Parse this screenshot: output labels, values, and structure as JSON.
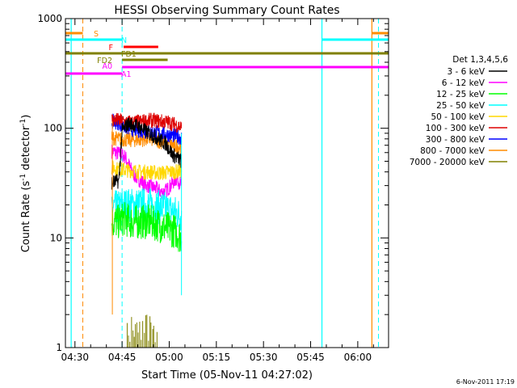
{
  "chart_data": {
    "type": "line",
    "title": "HESSI Observing Summary Count Rates",
    "xlabel": "Start Time (05-Nov-11 04:27:02)",
    "ylabel": "Count Rate (s⁻¹ detector⁻¹)",
    "ylabel_main": "Count Rate (s",
    "ylabel_sup1": "-1",
    "ylabel_mid": " detector",
    "ylabel_sup2": "-1",
    "ylabel_end": ")",
    "y_scale": "log",
    "ylim": [
      1,
      1000
    ],
    "xlim_minutes": [
      -3.03,
      99.8
    ],
    "x_ticks": [
      {
        "label": "04:30",
        "min": 0
      },
      {
        "label": "04:45",
        "min": 15
      },
      {
        "label": "05:00",
        "min": 30
      },
      {
        "label": "05:15",
        "min": 45
      },
      {
        "label": "05:30",
        "min": 60
      },
      {
        "label": "05:45",
        "min": 75
      },
      {
        "label": "06:00",
        "min": 90
      }
    ],
    "y_ticks": [
      {
        "label": "1",
        "value": 1
      },
      {
        "label": "10",
        "value": 10
      },
      {
        "label": "100",
        "value": 100
      },
      {
        "label": "1000",
        "value": 1000
      }
    ],
    "legend_title": "Det 1,3,4,5,6",
    "series": [
      {
        "name": "3 - 6 keV",
        "color": "#000000",
        "start": 11.7,
        "end": 33.9,
        "points": [
          [
            11.7,
            32
          ],
          [
            14,
            33
          ],
          [
            15,
            95
          ],
          [
            17,
            110
          ],
          [
            20,
            105
          ],
          [
            23,
            92
          ],
          [
            26,
            82
          ],
          [
            29,
            72
          ],
          [
            31,
            58
          ],
          [
            33.9,
            50
          ]
        ]
      },
      {
        "name": "6 - 12 keV",
        "color": "#ff00ff",
        "start": 11.7,
        "end": 33.9,
        "points": [
          [
            11.7,
            62
          ],
          [
            13,
            60
          ],
          [
            14.5,
            58
          ],
          [
            16,
            55
          ],
          [
            17.5,
            44
          ],
          [
            19,
            37
          ],
          [
            21,
            33
          ],
          [
            23,
            30
          ],
          [
            24.5,
            29
          ],
          [
            26,
            28
          ],
          [
            27.5,
            26
          ],
          [
            29,
            27
          ],
          [
            30.5,
            30
          ],
          [
            31.5,
            33
          ],
          [
            32.5,
            35
          ],
          [
            33.9,
            30
          ]
        ]
      },
      {
        "name": "12 - 25 keV",
        "color": "#00ff00",
        "start": 11.7,
        "end": 33.9,
        "points": [
          [
            11.7,
            14
          ],
          [
            14,
            14
          ],
          [
            15.5,
            15
          ],
          [
            18,
            14
          ],
          [
            21,
            14
          ],
          [
            24,
            14
          ],
          [
            27,
            13
          ],
          [
            30,
            12
          ],
          [
            32,
            11.5
          ],
          [
            33.9,
            10
          ]
        ]
      },
      {
        "name": "25 - 50 keV",
        "color": "#00ffff",
        "start": 11.7,
        "end": 33.9,
        "points": [
          [
            11.7,
            19
          ],
          [
            14,
            19
          ],
          [
            15.5,
            20
          ],
          [
            18,
            20
          ],
          [
            21,
            20
          ],
          [
            24,
            20
          ],
          [
            27,
            19
          ],
          [
            30,
            18
          ],
          [
            32,
            17
          ],
          [
            33.9,
            16
          ]
        ]
      },
      {
        "name": "50 - 100 keV",
        "color": "#ffd700",
        "start": 11.7,
        "end": 33.9,
        "points": [
          [
            11.7,
            44
          ],
          [
            14,
            42
          ],
          [
            15.5,
            42
          ],
          [
            18,
            41
          ],
          [
            21,
            40
          ],
          [
            24,
            40
          ],
          [
            27,
            39
          ],
          [
            30,
            40
          ],
          [
            32,
            40
          ],
          [
            33.9,
            41
          ]
        ]
      },
      {
        "name": "100 - 300 keV",
        "color": "#dd0000",
        "start": 11.7,
        "end": 33.9,
        "points": [
          [
            11.7,
            120
          ],
          [
            14,
            118
          ],
          [
            15.5,
            115
          ],
          [
            18,
            113
          ],
          [
            21,
            115
          ],
          [
            24,
            118
          ],
          [
            27,
            116
          ],
          [
            30,
            113
          ],
          [
            32,
            108
          ],
          [
            33.9,
            102
          ]
        ]
      },
      {
        "name": "300 - 800 keV",
        "color": "#0000ff",
        "start": 11.7,
        "end": 33.9,
        "points": [
          [
            11.7,
            115
          ],
          [
            14,
            112
          ],
          [
            15.5,
            104
          ],
          [
            18,
            98
          ],
          [
            21,
            95
          ],
          [
            24,
            92
          ],
          [
            27,
            90
          ],
          [
            30,
            87
          ],
          [
            32,
            85
          ],
          [
            33.9,
            82
          ]
        ]
      },
      {
        "name": "800 - 7000 keV",
        "color": "#ff8c00",
        "start": 11.7,
        "end": 33.9,
        "points": [
          [
            11.7,
            82
          ],
          [
            14,
            80
          ],
          [
            15.5,
            79
          ],
          [
            18,
            78
          ],
          [
            21,
            79
          ],
          [
            24,
            80
          ],
          [
            27,
            76
          ],
          [
            30,
            72
          ],
          [
            32,
            69
          ],
          [
            33.9,
            67
          ]
        ]
      },
      {
        "name": "7000 - 20000 keV",
        "color": "#808000",
        "start": 11.7,
        "end": 33.9,
        "points": []
      }
    ],
    "flags": [
      {
        "label": "S",
        "color": "#ff8c00",
        "segments": [
          [
            -3.03,
            2.5
          ],
          [
            94.5,
            99.8
          ]
        ]
      },
      {
        "label": "N",
        "color": "#00ffff",
        "segments": [
          [
            -3.03,
            15.0
          ],
          [
            78.6,
            99.8
          ]
        ]
      },
      {
        "label": "F",
        "color": "#ff0000",
        "segments": [
          [
            15.5,
            26.5
          ]
        ]
      },
      {
        "label": "FD1",
        "color": "#808000",
        "segments": [
          [
            -3.03,
            99.8
          ]
        ]
      },
      {
        "label": "FD2",
        "color": "#808000",
        "segments": [
          [
            15.0,
            29.5
          ]
        ]
      },
      {
        "label": "A0",
        "color": "#ff00ff",
        "segments": [
          [
            -3.03,
            15.0
          ]
        ]
      },
      {
        "label": "A1",
        "color": "#ff00ff",
        "segments": [
          [
            15.0,
            99.8
          ]
        ]
      }
    ],
    "grid": false,
    "legend_position": "right",
    "date_stamp": "6-Nov-2011 17:19"
  }
}
